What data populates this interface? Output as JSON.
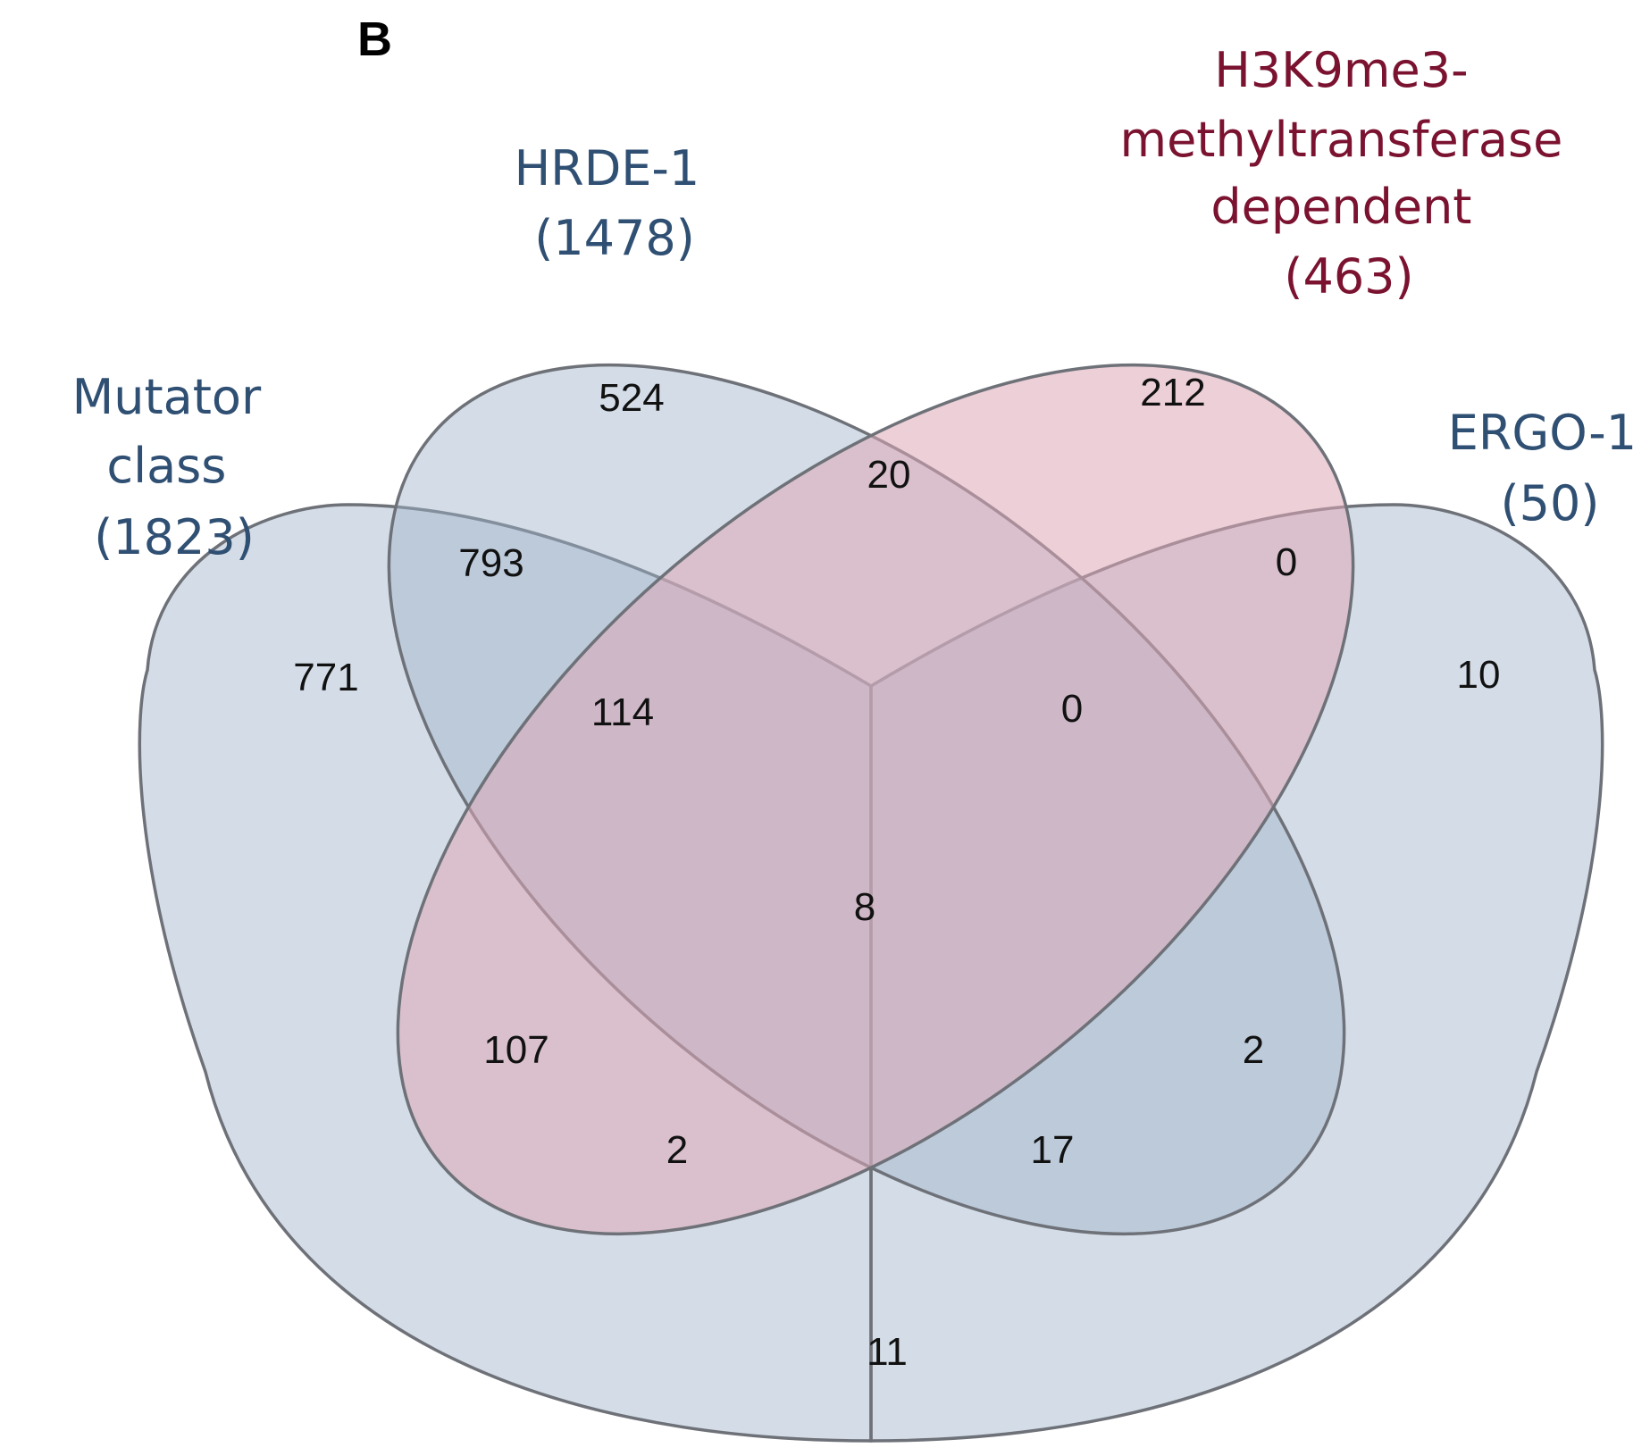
{
  "panel_label": "B",
  "colors": {
    "blue_set": "#9fb4ca",
    "red_set": "#dca7b7",
    "blue_label": "#2f4f73",
    "red_label": "#7a1230",
    "outline": "#6e7178"
  },
  "sets": {
    "mutator": {
      "lines": [
        "Mutator",
        "class",
        "(1823)"
      ]
    },
    "hrde1": {
      "lines": [
        "HRDE-1",
        "(1478)"
      ]
    },
    "h3k9": {
      "lines": [
        "H3K9me3-",
        "methyltransferase",
        "dependent",
        "(463)"
      ]
    },
    "ergo1": {
      "lines": [
        "ERGO-1",
        "(50)"
      ]
    }
  },
  "regions": {
    "hrde_only": "524",
    "h3k9_only": "212",
    "mut_only": "771",
    "ergo_only": "10",
    "hrde_h3k9": "20",
    "mut_hrde": "793",
    "h3k9_ergo": "0",
    "mut_hrde_h3k9": "114",
    "hrde_h3k9_ergo": "0",
    "all_four": "8",
    "mut_h3k9": "107",
    "hrde_ergo": "2",
    "mut_h3k9_ergo": "2",
    "mut_hrde_ergo": "17",
    "mut_ergo": "11"
  }
}
